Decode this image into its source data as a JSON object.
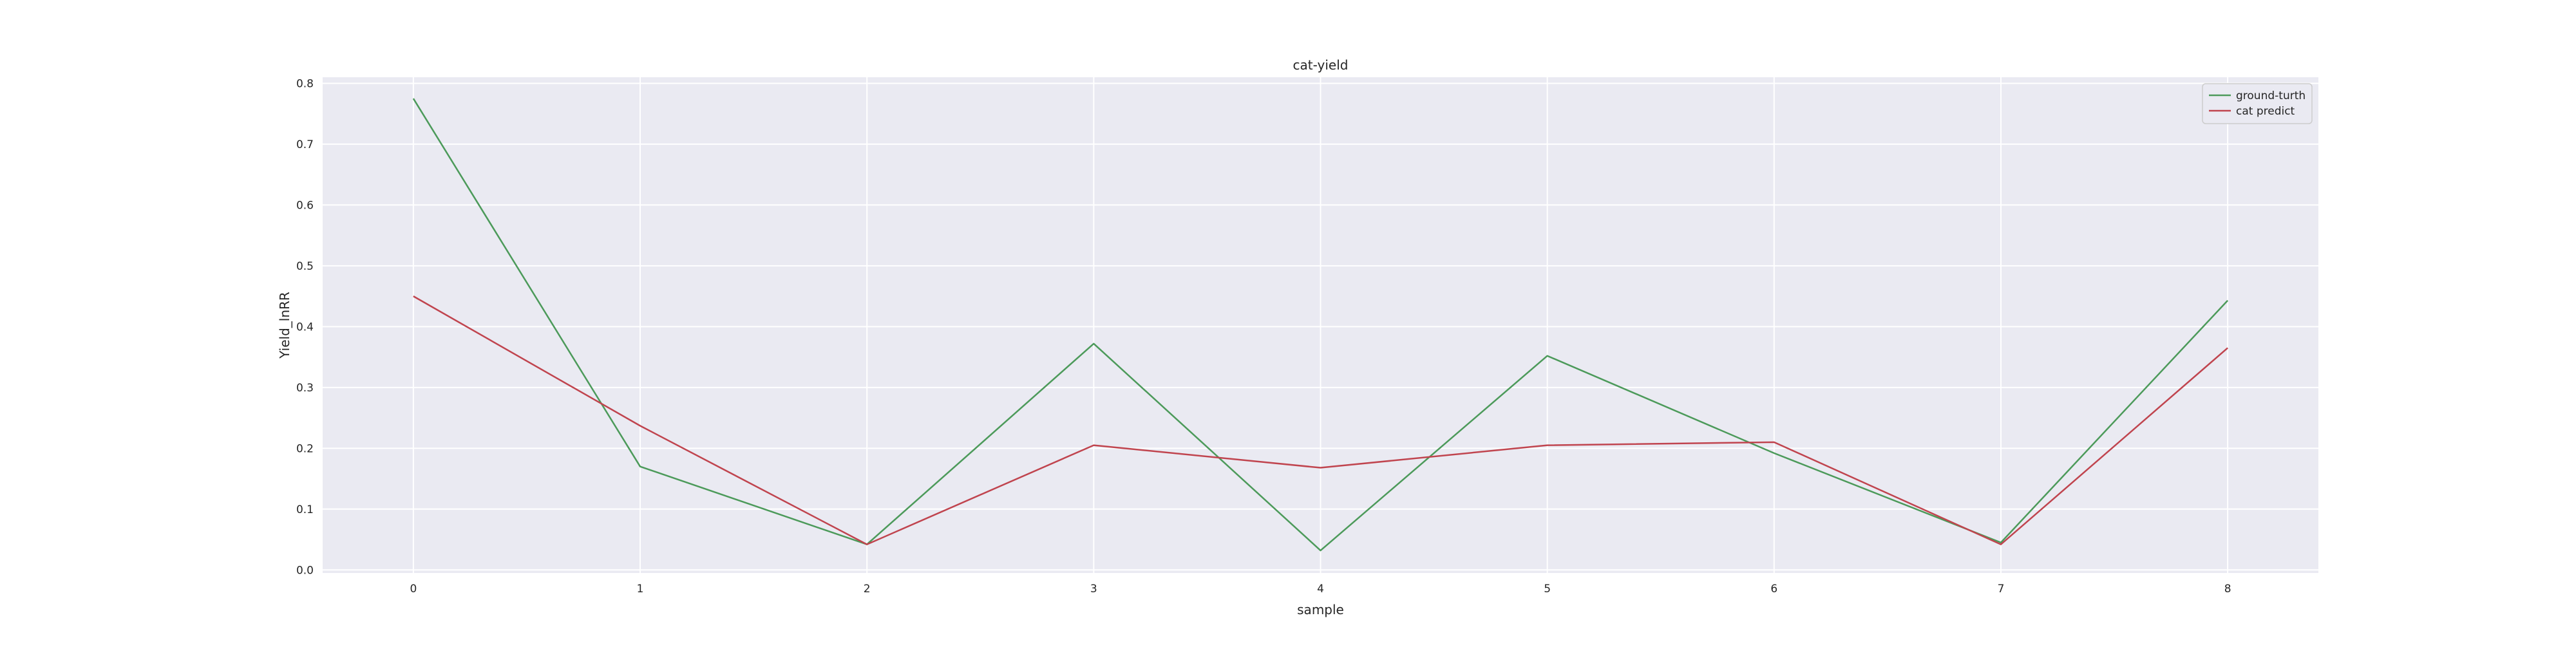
{
  "chart_data": {
    "type": "line",
    "title": "cat-yield",
    "xlabel": "sample",
    "ylabel": "Yield_lnRR",
    "x": [
      0,
      1,
      2,
      3,
      4,
      5,
      6,
      7,
      8
    ],
    "x_ticks": [
      "0",
      "1",
      "2",
      "3",
      "4",
      "5",
      "6",
      "7",
      "8"
    ],
    "y_ticks": [
      "0.0",
      "0.1",
      "0.2",
      "0.3",
      "0.4",
      "0.5",
      "0.6",
      "0.7",
      "0.8"
    ],
    "xlim": [
      -0.4,
      8.4
    ],
    "ylim": [
      -0.005,
      0.81
    ],
    "grid": true,
    "legend_position": "top-right",
    "series": [
      {
        "name": "ground-turth",
        "color": "#4c9a5a",
        "values": [
          0.775,
          0.17,
          0.042,
          0.372,
          0.032,
          0.352,
          0.192,
          0.045,
          0.443
        ]
      },
      {
        "name": "cat predict",
        "color": "#c0444e",
        "values": [
          0.45,
          0.237,
          0.042,
          0.205,
          0.168,
          0.205,
          0.21,
          0.042,
          0.365
        ]
      }
    ],
    "background_color": "#eaeaf2",
    "grid_color": "#ffffff"
  }
}
